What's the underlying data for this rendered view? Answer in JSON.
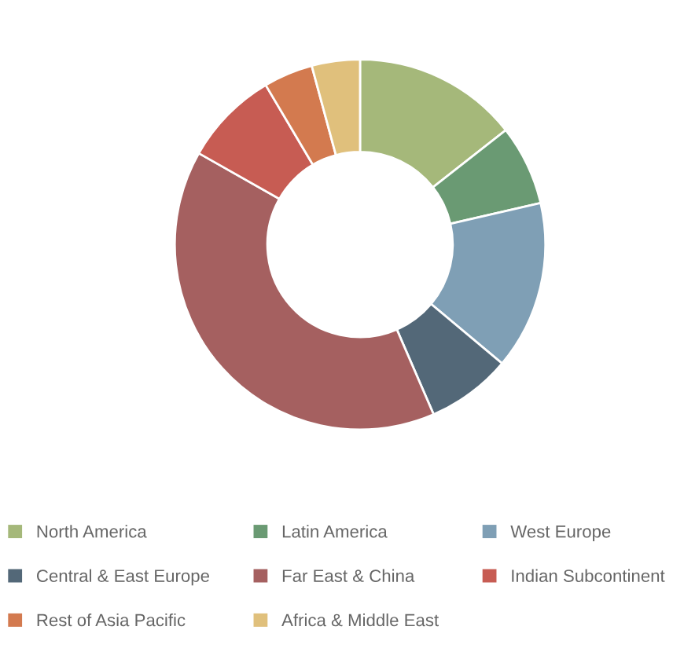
{
  "chart_data": {
    "type": "donut",
    "categories": [
      "North America",
      "Latin America",
      "West Europe",
      "Central & East Europe",
      "Far East & China",
      "Indian Subcontinent",
      "Rest of Asia Pacific",
      "Africa & Middle East"
    ],
    "values": [
      14.4,
      7,
      14.7,
      7.4,
      39.7,
      8.3,
      4.3,
      4.2
    ],
    "colors": [
      "#a5b87a",
      "#6a9a73",
      "#7f9fb5",
      "#536878",
      "#a56060",
      "#c75c53",
      "#d37a4f",
      "#e0c07c"
    ],
    "legend": "bottom"
  }
}
